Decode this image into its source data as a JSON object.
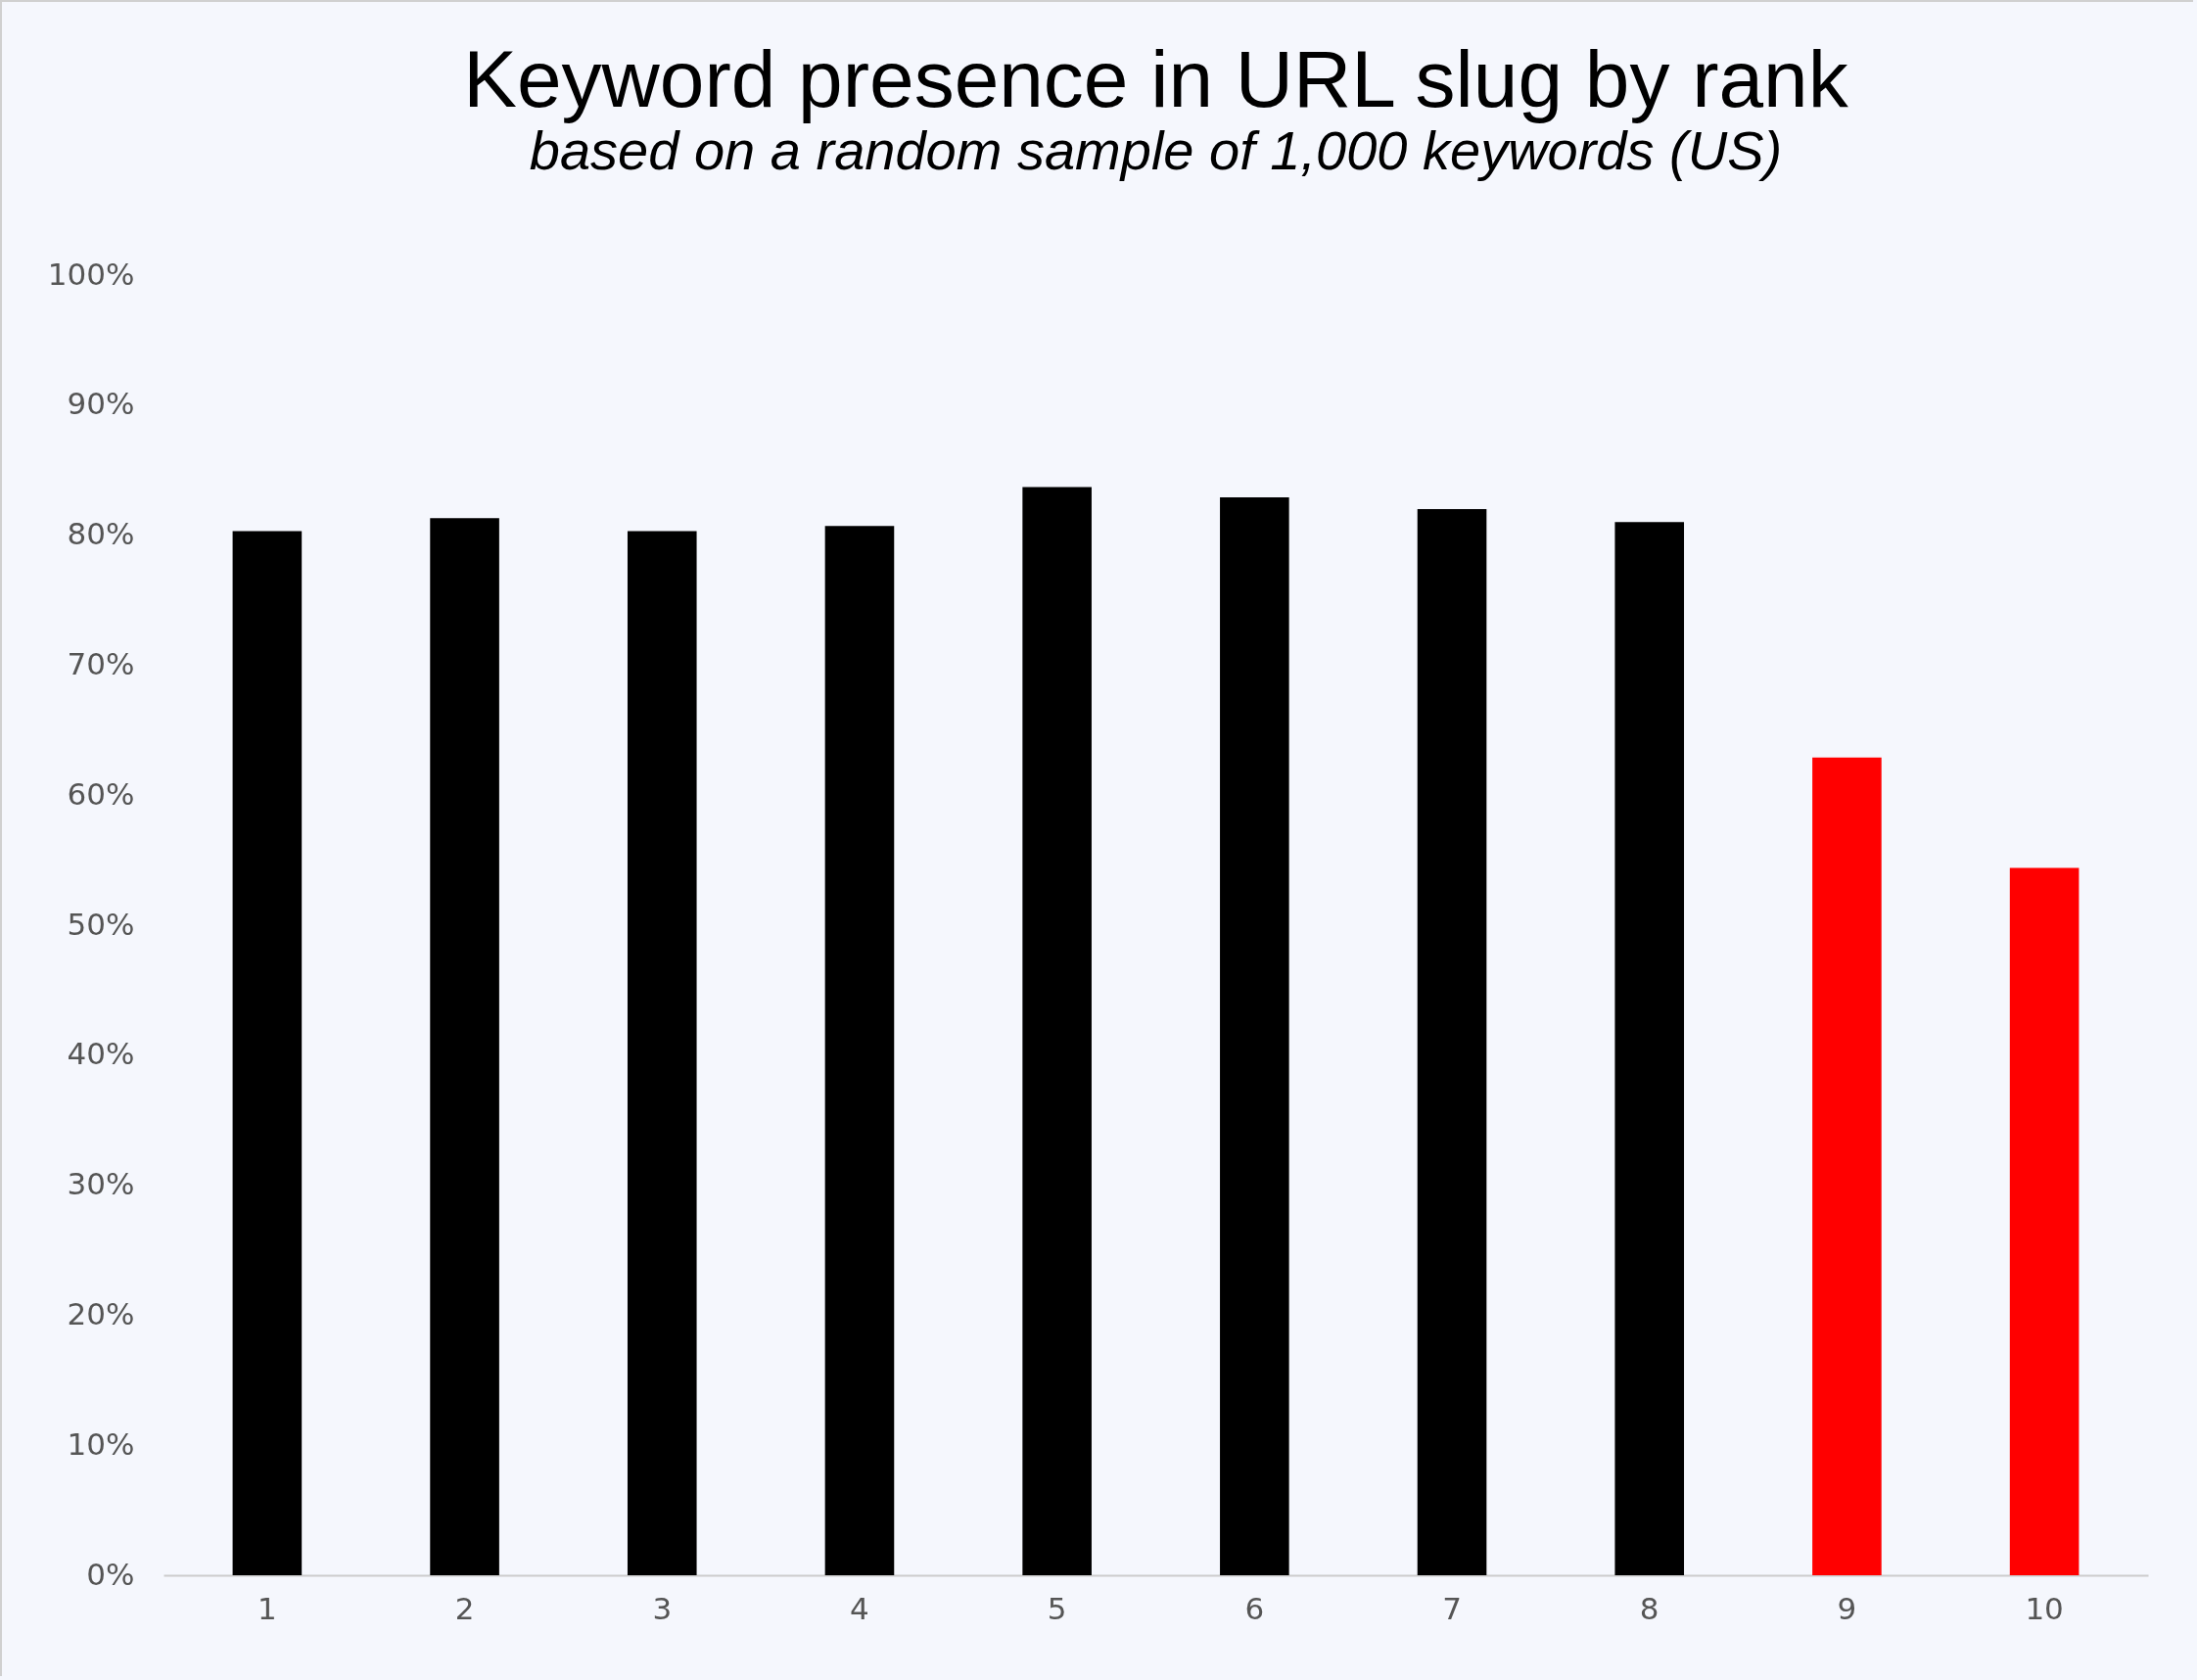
{
  "chart_data": {
    "type": "bar",
    "title": "Keyword presence in URL slug by rank",
    "subtitle": "based on a random sample of 1,000 keywords (US)",
    "categories": [
      "1",
      "2",
      "3",
      "4",
      "5",
      "6",
      "7",
      "8",
      "9",
      "10"
    ],
    "values": [
      80.3,
      81.3,
      80.3,
      80.7,
      83.7,
      82.9,
      82.0,
      81.0,
      62.9,
      54.4
    ],
    "colors": [
      "#000000",
      "#000000",
      "#000000",
      "#000000",
      "#000000",
      "#000000",
      "#000000",
      "#000000",
      "#ff0000",
      "#ff0000"
    ],
    "ylim": [
      0,
      100
    ],
    "yticks": [
      {
        "value": 0,
        "label": "0%"
      },
      {
        "value": 10,
        "label": "10%"
      },
      {
        "value": 20,
        "label": "20%"
      },
      {
        "value": 30,
        "label": "30%"
      },
      {
        "value": 40,
        "label": "40%"
      },
      {
        "value": 50,
        "label": "50%"
      },
      {
        "value": 60,
        "label": "60%"
      },
      {
        "value": 70,
        "label": "70%"
      },
      {
        "value": 80,
        "label": "80%"
      },
      {
        "value": 90,
        "label": "90%"
      },
      {
        "value": 100,
        "label": "100%"
      }
    ],
    "grid": false,
    "legend": false
  }
}
